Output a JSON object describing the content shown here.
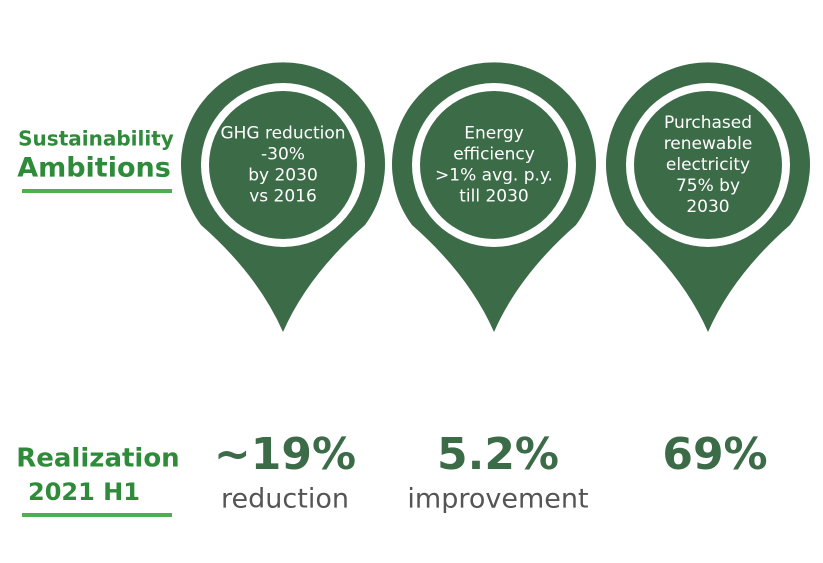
{
  "ambitions": {
    "title_lines": [
      "Sustainability",
      "Ambitions"
    ],
    "pins": [
      {
        "lines": [
          "GHG reduction",
          "-30%",
          "by 2030",
          "vs 2016"
        ]
      },
      {
        "lines": [
          "Energy",
          "efficiency",
          ">1% avg. p.y.",
          "till 2030"
        ]
      },
      {
        "lines": [
          "Purchased",
          "renewable",
          "electricity",
          "75% by",
          "2030"
        ]
      }
    ]
  },
  "realization": {
    "title_lines": [
      "Realization",
      "2021 H1"
    ],
    "items": [
      {
        "value": "~19%",
        "note": "reduction"
      },
      {
        "value": "5.2%",
        "note": "improvement"
      },
      {
        "value": "69%"
      }
    ]
  }
}
